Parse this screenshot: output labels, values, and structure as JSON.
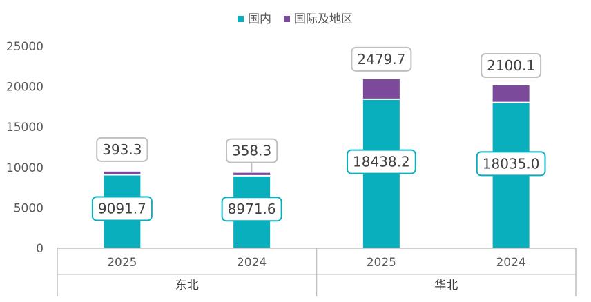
{
  "chart_data": {
    "type": "bar",
    "stacked": true,
    "ylim": [
      0,
      25000
    ],
    "yticks": [
      0,
      5000,
      10000,
      15000,
      20000,
      25000
    ],
    "groups": [
      {
        "name": "东北",
        "categories": [
          "2025",
          "2024"
        ]
      },
      {
        "name": "华北",
        "categories": [
          "2025",
          "2024"
        ]
      }
    ],
    "categories": [
      "2025",
      "2024",
      "2025",
      "2024"
    ],
    "series": [
      {
        "name": "国内",
        "color": "#0AAFBE",
        "values": [
          9091.7,
          8971.6,
          18438.2,
          18035.0
        ],
        "labels": [
          "9091.7",
          "8971.6",
          "18438.2",
          "18035.0"
        ]
      },
      {
        "name": "国际及地区",
        "color": "#7B4A9A",
        "values": [
          393.3,
          358.3,
          2479.7,
          2100.1
        ],
        "labels": [
          "393.3",
          "358.3",
          "2479.7",
          "2100.1"
        ]
      }
    ],
    "legend_position": "top",
    "grid": false
  }
}
